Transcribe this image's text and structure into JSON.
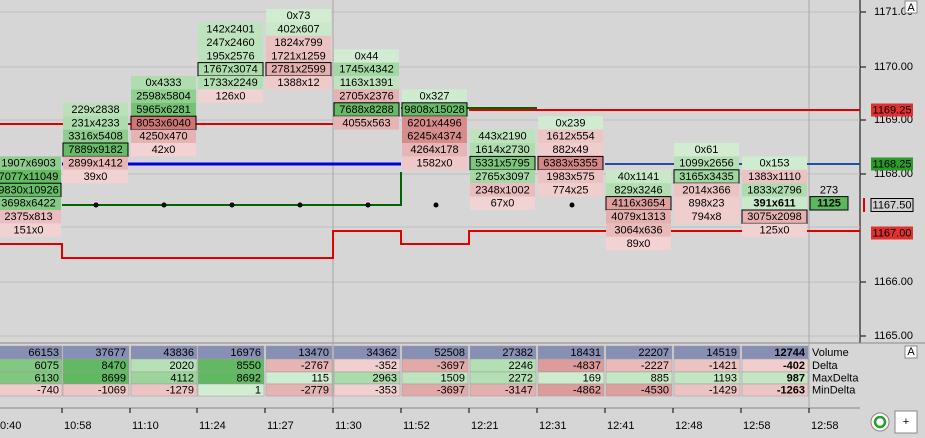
{
  "price_axis": {
    "labels": [
      "1171.00",
      "1170.00",
      "1169.00",
      "1168.00",
      "1166.00",
      "1165.00"
    ],
    "markers": [
      "1169.25",
      "1168.25",
      "1167.50",
      "1167.00"
    ],
    "corner": "A"
  },
  "footprint": {
    "columns": [
      {
        "time": "0:40",
        "cells": [
          "1907x6903",
          "7077x11049",
          "9830x10926",
          "3698x6422",
          "2375x813",
          "151x0"
        ]
      },
      {
        "time": "10:58",
        "cells": [
          "229x2838",
          "231x4233",
          "3316x5408",
          "7889x9182",
          "2899x1412",
          "39x0"
        ]
      },
      {
        "time": "11:10",
        "cells": [
          "0x4333",
          "2598x5804",
          "5965x6281",
          "8053x6040",
          "4250x470",
          "42x0"
        ]
      },
      {
        "time": "11:24",
        "cells": [
          "142x2401",
          "247x2460",
          "195x2576",
          "1767x3074",
          "1733x2249",
          "126x0"
        ]
      },
      {
        "time": "11:27",
        "cells": [
          "0x73",
          "402x607",
          "1824x799",
          "1721x1259",
          "2781x2599",
          "1388x12"
        ]
      },
      {
        "time": "11:30",
        "cells": [
          "0x44",
          "1745x4342",
          "1163x1391",
          "2705x2376",
          "7688x8288",
          "4055x563"
        ]
      },
      {
        "time": "11:52",
        "cells": [
          "0x327",
          "9808x15028",
          "6201x4496",
          "6245x4374",
          "4264x178",
          "1582x0"
        ]
      },
      {
        "time": "12:21",
        "cells": [
          "443x2190",
          "1614x2730",
          "5331x5795",
          "2765x3097",
          "2348x1002",
          "67x0"
        ]
      },
      {
        "time": "12:31",
        "cells": [
          "0x239",
          "1612x554",
          "882x49",
          "6383x5355",
          "1983x575",
          "774x25"
        ]
      },
      {
        "time": "12:41",
        "cells": [
          "40x1141",
          "829x3246",
          "4116x3654",
          "4079x1313",
          "3064x636",
          "89x0"
        ]
      },
      {
        "time": "12:48",
        "cells": [
          "0x61",
          "1099x2656",
          "3165x3435",
          "2014x366",
          "898x23",
          "794x8"
        ]
      },
      {
        "time": "12:58",
        "cells": [
          "0x153",
          "1383x1110",
          "1833x2796",
          "391x611",
          "3075x2098",
          "125x0"
        ]
      },
      {
        "time": "12:58",
        "cells": [
          "273",
          "1125"
        ]
      }
    ]
  },
  "summary": {
    "corner": "A",
    "row_labels": [
      "Volume",
      "Delta",
      "MaxDelta",
      "MinDelta"
    ],
    "rows": [
      [
        66153,
        37677,
        43836,
        16976,
        13470,
        34362,
        52508,
        27382,
        18431,
        22207,
        14519,
        12744
      ],
      [
        6075,
        8470,
        2020,
        8550,
        -2767,
        -352,
        -3697,
        2246,
        -4837,
        -2227,
        -1421,
        -402
      ],
      [
        6130,
        8699,
        4112,
        8692,
        115,
        2963,
        1509,
        2272,
        169,
        885,
        1193,
        987
      ],
      [
        -740,
        -1069,
        -1279,
        1,
        -2779,
        -353,
        -3697,
        -3147,
        -4862,
        -4530,
        -1429,
        -1263
      ]
    ]
  },
  "toolbar": {
    "add": "+"
  }
}
